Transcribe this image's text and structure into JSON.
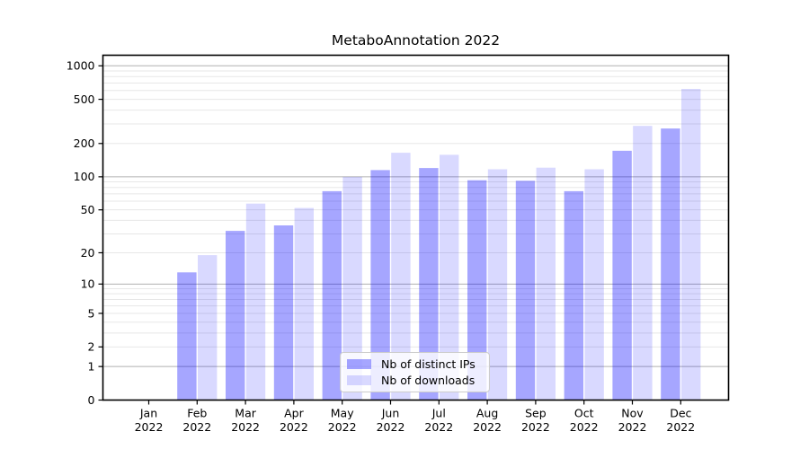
{
  "chart_data": {
    "type": "bar",
    "title": "MetaboAnnotation 2022",
    "categories": [
      "Jan",
      "Feb",
      "Mar",
      "Apr",
      "May",
      "Jun",
      "Jul",
      "Aug",
      "Sep",
      "Oct",
      "Nov",
      "Dec"
    ],
    "x_year": "2022",
    "series": [
      {
        "name": "Nb of distinct IPs",
        "color": "rgba(0,0,255,0.35)",
        "values": [
          0,
          13,
          32,
          36,
          74,
          115,
          120,
          93,
          92,
          74,
          172,
          273
        ]
      },
      {
        "name": "Nb of downloads",
        "color": "rgba(0,0,255,0.15)",
        "values": [
          0,
          19,
          57,
          52,
          100,
          165,
          158,
          117,
          121,
          117,
          288,
          620
        ]
      }
    ],
    "xlabel": "",
    "ylabel": "",
    "yscale": "log1p",
    "ylim": [
      0,
      1245
    ],
    "y_ticks": [
      0,
      1,
      2,
      5,
      10,
      20,
      50,
      100,
      200,
      500,
      1000
    ],
    "y_grid_major": [
      1,
      10,
      100,
      1000
    ],
    "y_grid_minor": [
      2,
      3,
      4,
      5,
      6,
      7,
      8,
      9,
      20,
      30,
      40,
      50,
      60,
      70,
      80,
      90,
      200,
      300,
      400,
      500,
      600,
      700,
      800,
      900
    ],
    "grid": true,
    "legend_position": "lower center",
    "colors": {
      "grid_major": "#b0b0b0",
      "grid_minor": "#e7e7e7",
      "axis": "#000000",
      "text": "#000000",
      "background": "#ffffff"
    }
  }
}
